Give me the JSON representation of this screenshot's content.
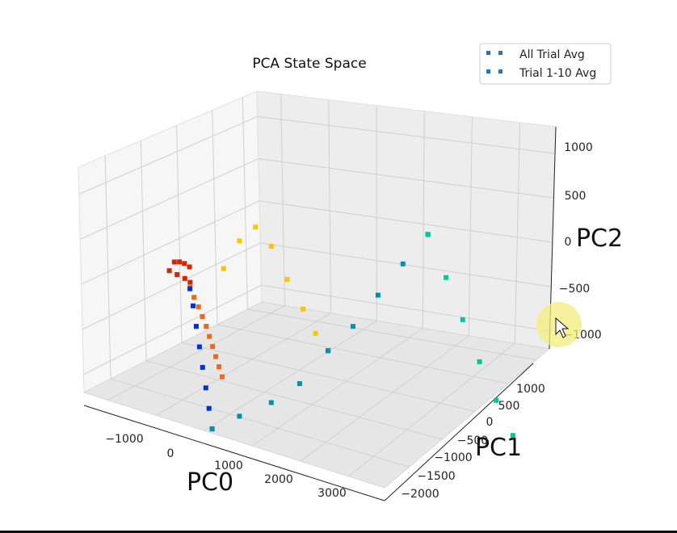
{
  "chart_data": {
    "type": "scatter",
    "title": "PCA State Space",
    "xlabel": "PC0",
    "ylabel": "PC1",
    "zlabel": "PC2",
    "xticks": [
      "−1000",
      "0",
      "1000",
      "2000",
      "3000"
    ],
    "yticks": [
      "−2000",
      "−1500",
      "−1000",
      "−500",
      "0",
      "500",
      "1000"
    ],
    "zticks": [
      "−1000",
      "−500",
      "0",
      "500",
      "1000"
    ],
    "ylim": [
      -2000,
      1000
    ],
    "zlim": [
      -1000,
      1000
    ],
    "grid": true,
    "legend_position": "top-right",
    "legend": [
      "All Trial Avg",
      "Trial 1-10 Avg"
    ],
    "legend_color": "#1f77b4",
    "cursor_highlight_color": "#f2ee7a",
    "colors": {
      "red": "#d62400",
      "orange": "#f0661a",
      "yellow": "#ffc400",
      "blue": "#0030d8",
      "teal": "#0090b0",
      "green": "#00c89a"
    },
    "series": [
      {
        "name": "All Trial Avg",
        "segments": [
          {
            "color": "red",
            "x": [
              -200,
              -180,
              -160,
              -140,
              -120,
              -110,
              -100,
              -80
            ],
            "y": [
              -800,
              -900,
              -1000,
              -1100,
              -1200,
              -1100,
              -1000,
              -950
            ],
            "z": [
              500,
              540,
              570,
              590,
              560,
              520,
              480,
              450
            ]
          },
          {
            "color": "orange",
            "x": [
              -80,
              -60,
              -40,
              -20,
              0,
              20,
              40,
              60,
              80,
              100
            ],
            "y": [
              -950,
              -920,
              -880,
              -850,
              -820,
              -800,
              -780,
              -760,
              -740,
              -720
            ],
            "z": [
              420,
              360,
              300,
              240,
              180,
              120,
              60,
              0,
              -60,
              -120
            ]
          },
          {
            "color": "yellow",
            "x": [
              100,
              200,
              300,
              400,
              500,
              600,
              700,
              800
            ],
            "y": [
              -700,
              -600,
              -500,
              -400,
              -300,
              -200,
              -150,
              -100
            ],
            "z": [
              500,
              650,
              720,
              600,
              400,
              220,
              80,
              -20
            ]
          },
          {
            "color": "teal",
            "x": [
              800,
              1000,
              1200,
              1400,
              1600
            ],
            "y": [
              -100,
              0,
              100,
              200,
              300
            ],
            "z": [
              -20,
              120,
              300,
              480,
              650
            ]
          },
          {
            "color": "green",
            "x": [
              1600,
              1800,
              2000,
              2200,
              2400,
              2600
            ],
            "y": [
              300,
              300,
              280,
              260,
              240,
              220
            ],
            "z": [
              650,
              420,
              200,
              -20,
              -220,
              -400
            ]
          }
        ]
      },
      {
        "name": "Trial 1-10 Avg",
        "segments": [
          {
            "color": "blue",
            "x": [
              -120,
              -100,
              -80,
              -60,
              -40,
              -20,
              0,
              20
            ],
            "y": [
              -900,
              -880,
              -860,
              -840,
              -820,
              -800,
              -780,
              -760
            ],
            "z": [
              400,
              300,
              180,
              60,
              -60,
              -180,
              -300,
              -420
            ]
          },
          {
            "color": "teal",
            "x": [
              20,
              200,
              400,
              600,
              800
            ],
            "y": [
              -760,
              -600,
              -400,
              -250,
              -100
            ],
            "z": [
              -420,
              -360,
              -300,
              -200,
              -20
            ]
          }
        ]
      }
    ]
  }
}
